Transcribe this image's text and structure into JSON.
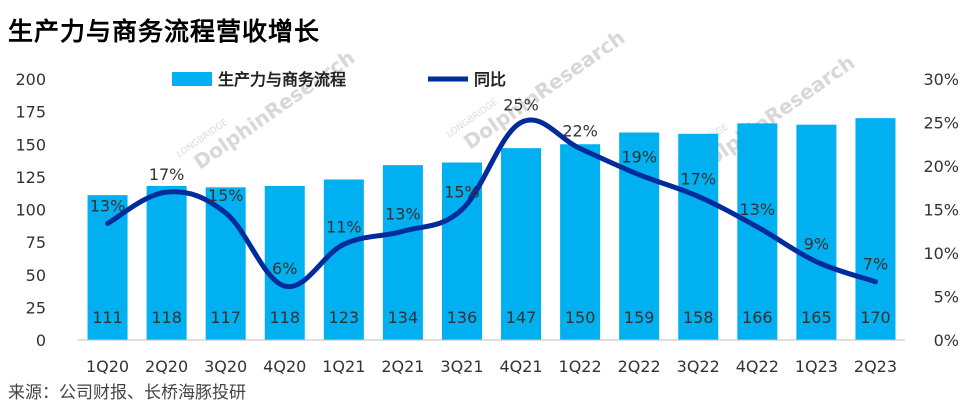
{
  "title": "生产力与商务流程营收增长",
  "source": "来源：公司财报、长桥海豚投研",
  "watermark": {
    "brand": "DolphinResearch",
    "sub": "LONGBRIDGE"
  },
  "colors": {
    "bar": "#00b0f0",
    "line": "#002b9b"
  },
  "chart_data": {
    "type": "bar",
    "categories": [
      "1Q20",
      "2Q20",
      "3Q20",
      "4Q20",
      "1Q21",
      "2Q21",
      "3Q21",
      "4Q21",
      "1Q22",
      "2Q22",
      "3Q22",
      "4Q22",
      "1Q23",
      "2Q23"
    ],
    "left_axis": {
      "min": 0,
      "max": 200,
      "ticks": [
        "0",
        "25",
        "50",
        "75",
        "100",
        "125",
        "150",
        "175",
        "200"
      ]
    },
    "right_axis": {
      "min": 0,
      "max": 30,
      "ticks": [
        "0%",
        "5%",
        "10%",
        "15%",
        "20%",
        "25%",
        "30%"
      ]
    },
    "series": [
      {
        "name": "生产力与商务流程",
        "type": "bar",
        "axis": "left",
        "values": [
          111,
          118,
          117,
          118,
          123,
          134,
          136,
          147,
          150,
          159,
          158,
          166,
          165,
          170
        ],
        "labels": [
          "111",
          "118",
          "117",
          "118",
          "123",
          "134",
          "136",
          "147",
          "150",
          "159",
          "158",
          "166",
          "165",
          "170"
        ]
      },
      {
        "name": "同比",
        "type": "line",
        "axis": "right",
        "values": [
          13.4,
          17.0,
          14.6,
          6.2,
          11.0,
          12.5,
          15.0,
          25.0,
          22.0,
          19.0,
          16.5,
          13.0,
          9.0,
          6.7
        ],
        "labels": [
          "13%",
          "17%",
          "15%",
          "6%",
          "11%",
          "13%",
          "15%",
          "25%",
          "22%",
          "19%",
          "17%",
          "13%",
          "9%",
          "7%"
        ]
      }
    ],
    "legend": "top"
  }
}
